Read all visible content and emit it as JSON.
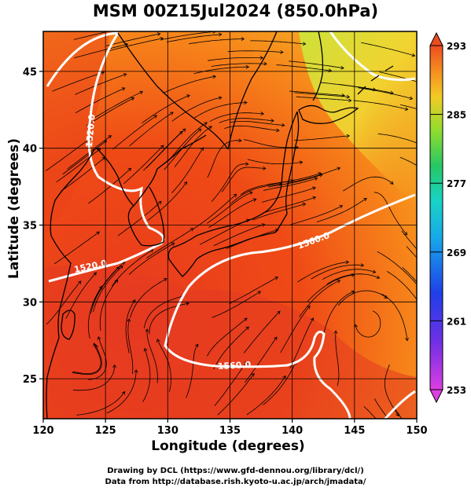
{
  "title": "MSM 00Z15Jul2024 (850.0hPa)",
  "xlabel": "Longitude (degrees)",
  "ylabel": "Latitude  (degrees)",
  "x_ticks": [
    "120",
    "125",
    "130",
    "135",
    "140",
    "145",
    "150"
  ],
  "y_ticks": [
    "25",
    "30",
    "35",
    "40",
    "45"
  ],
  "colorbar": {
    "tick_labels": [
      "293",
      "285",
      "277",
      "269",
      "261",
      "253"
    ],
    "min": 253,
    "max": 293
  },
  "contour_labels": [
    "1520.0",
    "1520.0",
    "1560.0",
    "1560.0"
  ],
  "credit_line1": "Drawing by DCL (https://www.gfd-dennou.org/library/dcl/)",
  "credit_line2": "Data from http://database.rish.kyoto-u.ac.jp/arch/jmadata/",
  "chart_data": {
    "type": "heatmap",
    "title": "MSM 00Z15Jul2024 (850.0hPa)",
    "xlabel": "Longitude (degrees)",
    "ylabel": "Latitude  (degrees)",
    "xlim": [
      120,
      150
    ],
    "ylim": [
      22.4,
      47.6
    ],
    "x_ticks": [
      120,
      125,
      130,
      135,
      140,
      145,
      150
    ],
    "y_ticks": [
      25,
      30,
      35,
      40,
      45
    ],
    "colorbar_range": [
      253,
      293
    ],
    "colorbar_ticks": [
      293,
      285,
      277,
      269,
      261,
      253
    ],
    "fields": [
      "temperature (shaded)",
      "geopotential height contours (white)",
      "wind streamlines (black)"
    ],
    "contour_levels": [
      1520.0,
      1560.0
    ],
    "grid": true
  }
}
